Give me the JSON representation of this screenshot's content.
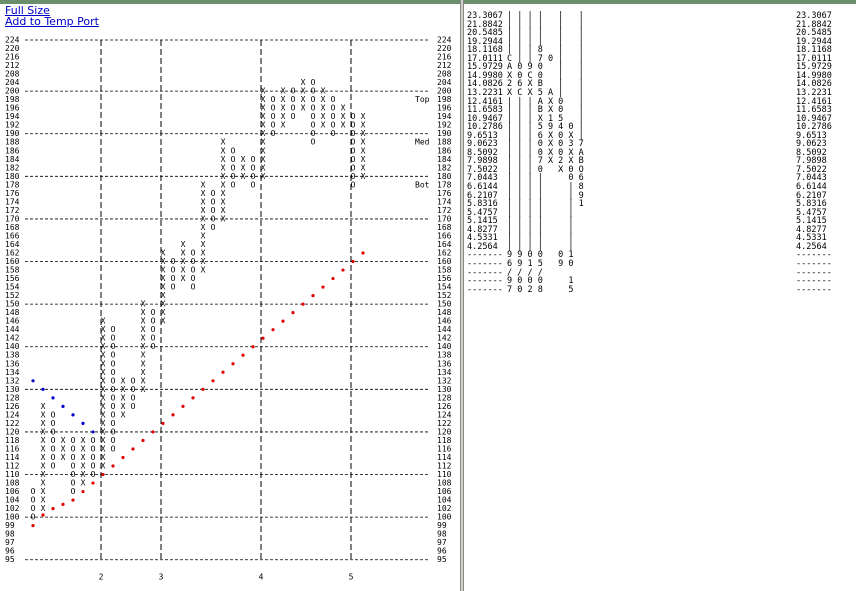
{
  "links": [
    "Full Size",
    "Add to Temp Port"
  ],
  "pnf": {
    "scale": [
      224,
      220,
      216,
      212,
      208,
      204,
      200,
      198,
      196,
      194,
      192,
      190,
      188,
      186,
      184,
      182,
      180,
      178,
      176,
      174,
      172,
      170,
      168,
      166,
      164,
      162,
      160,
      158,
      156,
      154,
      152,
      150,
      148,
      146,
      144,
      142,
      140,
      138,
      136,
      134,
      132,
      130,
      128,
      126,
      124,
      122,
      120,
      118,
      116,
      114,
      112,
      110,
      108,
      106,
      104,
      102,
      100,
      99,
      98,
      97,
      96,
      95
    ],
    "dashed_levels": [
      224,
      200,
      190,
      180,
      170,
      160,
      150,
      140,
      130,
      120,
      110,
      100,
      95
    ],
    "columns": [
      {
        "type": "O",
        "low": 100,
        "high": 106
      },
      {
        "type": "X",
        "low": 102,
        "high": 126
      },
      {
        "type": "O",
        "low": 112,
        "high": 124
      },
      {
        "type": "X",
        "low": 114,
        "high": 118
      },
      {
        "type": "O",
        "low": 106,
        "high": 118
      },
      {
        "type": "X",
        "low": 108,
        "high": 118
      },
      {
        "type": "O",
        "low": 110,
        "high": 118
      },
      {
        "type": "X",
        "low": 112,
        "high": 146
      },
      {
        "type": "O",
        "low": 116,
        "high": 144
      },
      {
        "type": "X",
        "low": 124,
        "high": 132
      },
      {
        "type": "O",
        "low": 126,
        "high": 132
      },
      {
        "type": "X",
        "low": 130,
        "high": 150
      },
      {
        "type": "O",
        "low": 140,
        "high": 148
      },
      {
        "type": "X",
        "low": 146,
        "high": 162
      },
      {
        "type": "O",
        "low": 154,
        "high": 160
      },
      {
        "type": "X",
        "low": 156,
        "high": 164
      },
      {
        "type": "O",
        "low": 154,
        "high": 162
      },
      {
        "type": "X",
        "low": 158,
        "high": 178
      },
      {
        "type": "O",
        "low": 168,
        "high": 176
      },
      {
        "type": "X",
        "low": 170,
        "high": 188
      },
      {
        "type": "O",
        "low": 178,
        "high": 186
      },
      {
        "type": "X",
        "low": 180,
        "high": 184
      },
      {
        "type": "O",
        "low": 178,
        "high": 184
      },
      {
        "type": "X",
        "low": 180,
        "high": 200
      },
      {
        "type": "O",
        "low": 190,
        "high": 198
      },
      {
        "type": "X",
        "low": 192,
        "high": 202
      },
      {
        "type": "O",
        "low": 194,
        "high": 200
      },
      {
        "type": "X",
        "low": 196,
        "high": 206
      },
      {
        "type": "O",
        "low": 188,
        "high": 204
      },
      {
        "type": "X",
        "low": 192,
        "high": 200
      },
      {
        "type": "O",
        "low": 190,
        "high": 198
      },
      {
        "type": "X",
        "low": 192,
        "high": 196
      },
      {
        "type": "O",
        "low": 178,
        "high": 194
      },
      {
        "type": "X",
        "low": 180,
        "high": 194
      }
    ],
    "support": [
      99,
      100.5,
      102,
      103,
      104,
      106,
      108,
      110,
      112,
      114,
      116,
      118,
      120,
      122,
      124,
      126,
      128,
      130,
      132,
      134,
      136,
      138,
      140,
      142,
      144,
      146,
      148,
      150,
      152,
      154,
      156,
      158,
      160,
      162
    ],
    "support_color": "#e00000",
    "resistance": [
      132,
      130,
      128,
      126,
      124,
      122,
      120
    ],
    "resistance_color": "#0000cc",
    "levels": [
      {
        "label": "Top",
        "price": 198
      },
      {
        "label": "Med",
        "price": 188
      },
      {
        "label": "Bot",
        "price": 178
      }
    ],
    "months": [
      {
        "label": "2",
        "column": 7
      },
      {
        "label": "3",
        "column": 13
      },
      {
        "label": "4",
        "column": 23
      },
      {
        "label": "5",
        "column": 32
      }
    ]
  },
  "table": {
    "rows": [
      {
        "price": "23.3067",
        "marks": "| | | |   |   |"
      },
      {
        "price": "21.8842",
        "marks": "| | | |   |   |"
      },
      {
        "price": "20.5485",
        "marks": "| | | |   |   |"
      },
      {
        "price": "19.2944",
        "marks": "| | | |   |   |"
      },
      {
        "price": "18.1168",
        "marks": "| | | 8   |   |"
      },
      {
        "price": "17.0111",
        "marks": "C | | 7 0 |   |"
      },
      {
        "price": "15.9729",
        "marks": "A 0 9 0   |   |"
      },
      {
        "price": "14.9980",
        "marks": "X 0 C 0   |   |"
      },
      {
        "price": "14.0826",
        "marks": "2 6 X B   |   |"
      },
      {
        "price": "13.2231",
        "marks": "X C X 5 A |   |"
      },
      {
        "price": "12.4161",
        "marks": "| | | A X 0   |"
      },
      {
        "price": "11.6583",
        "marks": "| | | B X 0   |"
      },
      {
        "price": "10.9467",
        "marks": "| | | X 1 5   |"
      },
      {
        "price": "10.2786",
        "marks": "| | | 5 9 4 0 |"
      },
      {
        "price": "9.6513",
        "marks": "| | | 6 X 0 X |"
      },
      {
        "price": "9.0623",
        "marks": "| | | 0 X 0 3 7"
      },
      {
        "price": "8.5092",
        "marks": "| | | 0 X 0 X A"
      },
      {
        "price": "7.9898",
        "marks": "| | | 7 X 2 X B"
      },
      {
        "price": "7.5022",
        "marks": "| | | 0   X 0 O"
      },
      {
        "price": "7.0443",
        "marks": "| | | |     0 6"
      },
      {
        "price": "6.6144",
        "marks": "| | | |     | 8"
      },
      {
        "price": "6.2107",
        "marks": "| | | |     | 9"
      },
      {
        "price": "5.8316",
        "marks": "| | | |     | 1"
      },
      {
        "price": "5.4757",
        "marks": "| | | |     |"
      },
      {
        "price": "5.1415",
        "marks": "| | | |     |"
      },
      {
        "price": "4.8277",
        "marks": "| | | |     |"
      },
      {
        "price": "4.5331",
        "marks": "| | | |     |"
      },
      {
        "price": "4.2564",
        "marks": "| | | |     |"
      }
    ],
    "footer": [
      {
        "left": "-------",
        "marks": "9 9 0 0   0 1",
        "right": "-------"
      },
      {
        "left": "-------",
        "marks": "6 9 1 5   9 0",
        "right": "-------"
      },
      {
        "left": "-------",
        "marks": "/ / / /",
        "right": "-------"
      },
      {
        "left": "-------",
        "marks": "9 0 0 0     1",
        "right": "-------"
      },
      {
        "left": "-------",
        "marks": "7 0 2 8     5",
        "right": "-------"
      }
    ]
  }
}
